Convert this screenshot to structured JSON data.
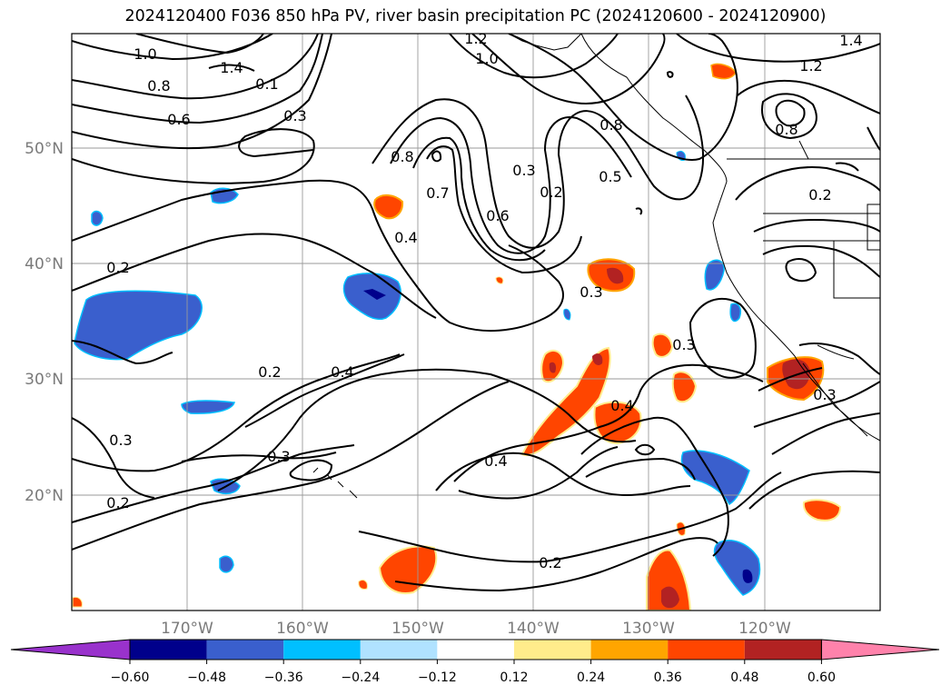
{
  "title": "2024120400 F036 850 hPa PV, river basin precipitation PC (2024120600 - 2024120900)",
  "lat_labels": [
    "50°N",
    "40°N",
    "30°N",
    "20°N"
  ],
  "lon_labels": [
    "170°W",
    "160°W",
    "150°W",
    "140°W",
    "130°W",
    "120°W"
  ],
  "contour_labels": [
    "1.2",
    "1.0",
    "1.4",
    "1.0",
    "1.4",
    "1.2",
    "0.8",
    "0.6",
    "0.3",
    "0.8",
    "0.7",
    "0.6",
    "0.3",
    "0.2",
    "0.5",
    "0.8",
    "0.8",
    "0.4",
    "0.2",
    "0.3",
    "0.3",
    "0.2",
    "0.4",
    "0.3",
    "0.3",
    "0.2",
    "0.4",
    "0.4",
    "0.3",
    "0.2",
    "0.2",
    "0.1"
  ],
  "colorbar": {
    "ticks": [
      "−0.60",
      "−0.48",
      "−0.36",
      "−0.24",
      "−0.12",
      "0.12",
      "0.24",
      "0.36",
      "0.48",
      "0.60"
    ],
    "colors": [
      "#9932cc",
      "#00008b",
      "#3a5fcd",
      "#00bfff",
      "#b0e2ff",
      "#ffffff",
      "#ffec8b",
      "#ffa500",
      "#ff4500",
      "#b22222",
      "#ff82ab"
    ]
  },
  "colors": {
    "frame": "#000000",
    "grid": "#9a9a9a",
    "tick_text": "#7a7a7a"
  }
}
